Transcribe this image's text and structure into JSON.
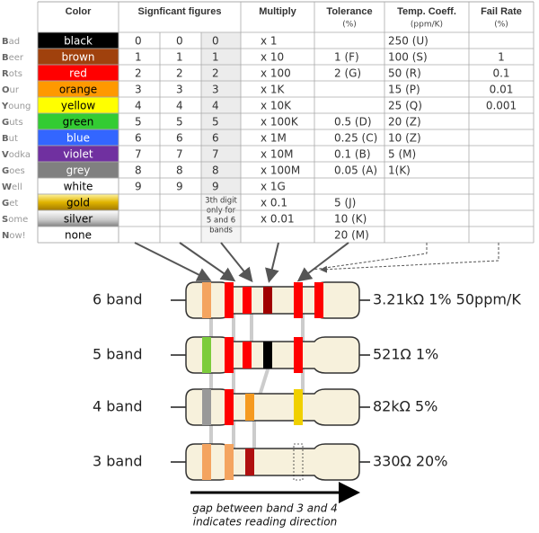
{
  "header": {
    "color": "Color",
    "sig": "Signficant figures",
    "multiply": "Multiply",
    "tolerance": "Tolerance",
    "tolerance_unit": "(%)",
    "tempco": "Temp. Coeff.",
    "tempco_unit": "(ppm/K)",
    "fail": "Fail Rate",
    "fail_unit": "(%)"
  },
  "table": {
    "rows": [
      [
        "Bad",
        "black",
        "0",
        "0",
        "0",
        "x 1",
        null,
        "250 (U)",
        null
      ],
      [
        "Beer",
        "brown",
        "1",
        "1",
        "1",
        "x 10",
        "1 (F)",
        "100 (S)",
        "1"
      ],
      [
        "Rots",
        "red",
        "2",
        "2",
        "2",
        "x 100",
        "2 (G)",
        "50 (R)",
        "0.1"
      ],
      [
        "Our",
        "orange",
        "3",
        "3",
        "3",
        "x 1K",
        null,
        "15 (P)",
        "0.01"
      ],
      [
        "Young",
        "yellow",
        "4",
        "4",
        "4",
        "x 10K",
        null,
        "25 (Q)",
        "0.001"
      ],
      [
        "Guts",
        "green",
        "5",
        "5",
        "5",
        "x 100K",
        "0.5 (D)",
        "20 (Z)",
        null
      ],
      [
        "But",
        "blue",
        "6",
        "6",
        "6",
        "x 1M",
        "0.25 (C)",
        "10 (Z)",
        null
      ],
      [
        "Vodka",
        "violet",
        "7",
        "7",
        "7",
        "x 10M",
        "0.1 (B)",
        "5 (M)",
        null
      ],
      [
        "Goes",
        "grey",
        "8",
        "8",
        "8",
        "x 100M",
        "0.05 (A)",
        "1(K)",
        null
      ],
      [
        "Well",
        "white",
        "9",
        "9",
        "9",
        "x 1G",
        null,
        null,
        null
      ],
      [
        "Get",
        "gold",
        null,
        null,
        null,
        "x 0.1",
        "5 (J)",
        null,
        null
      ],
      [
        "Some",
        "silver",
        null,
        null,
        null,
        "x 0.01",
        "10 (K)",
        null,
        null
      ],
      [
        "Now!",
        "none",
        null,
        null,
        null,
        null,
        "20 (M)",
        null,
        null
      ]
    ],
    "swatches": [
      "#000000",
      "#a0410d",
      "#ff0000",
      "#ff9900",
      "#ffff00",
      "#33cc33",
      "#3366ff",
      "#7030a0",
      "#808080",
      "#ffffff",
      "url(#gold)",
      "url(#silver)",
      "#ffffff"
    ],
    "note": [
      "3th digit",
      "only for",
      "5 and 6",
      "bands"
    ]
  },
  "resistors": [
    {
      "label": "6 band",
      "value": "3.21kΩ 1% 50ppm/K"
    },
    {
      "label": "5 band",
      "value": "521Ω 1%"
    },
    {
      "label": "4 band",
      "value": "82kΩ 5%"
    },
    {
      "label": "3 band",
      "value": "330Ω 20%"
    }
  ],
  "caption": [
    "gap between band 3 and 4",
    "indicates reading direction"
  ]
}
